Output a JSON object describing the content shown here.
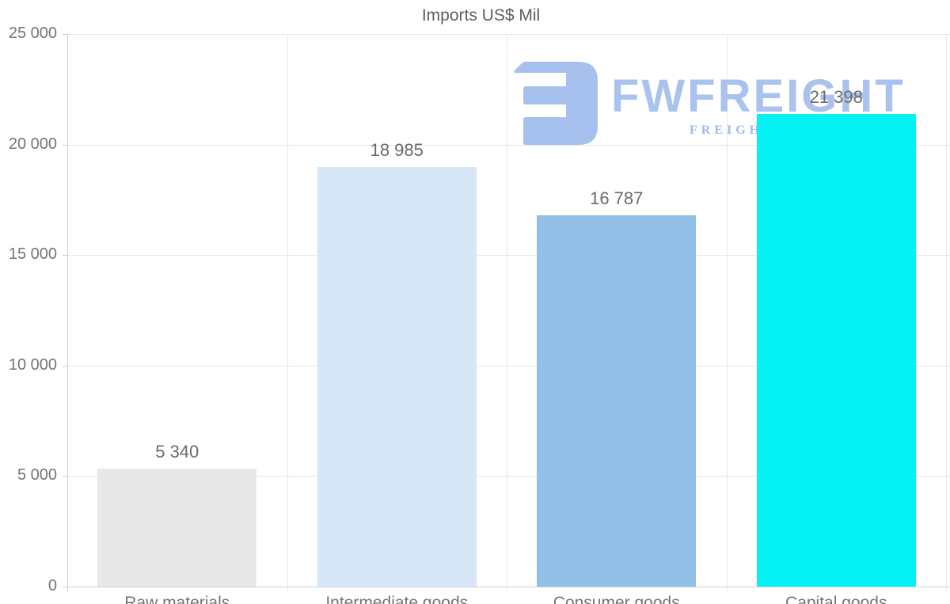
{
  "title": "Imports US$ Mil",
  "watermark": {
    "wordmark": "FWFREIGHT",
    "subtitle": "FREIGHT",
    "color": "#a9c3ee",
    "subtitle_color": "#9fbdec"
  },
  "chart_data": {
    "type": "bar",
    "title": "Imports US$ Mil",
    "categories": [
      "Raw materials",
      "Intermediate goods",
      "Consumer goods",
      "Capital goods"
    ],
    "values": [
      5340,
      18985,
      16787,
      21398
    ],
    "value_labels": [
      "5 340",
      "18 985",
      "16 787",
      "21 398"
    ],
    "bar_colors": [
      "#e8e8e8",
      "#d8e7f8",
      "#92bfe6",
      "#04f2f4"
    ],
    "xlabel": "",
    "ylabel": "",
    "ylim": [
      0,
      25000
    ],
    "ytick_interval": 5000,
    "ytick_labels": [
      "0",
      "5 000",
      "10 000",
      "15 000",
      "20 000",
      "25 000"
    ],
    "grid": true,
    "legend": "none"
  },
  "colors": {
    "grid": "#e7e7e7",
    "axis": "#cfcfcf",
    "tick_label": "#757575",
    "value_label": "#6b6b6b",
    "category_label": "#757575",
    "title_text": "#5c6063"
  }
}
